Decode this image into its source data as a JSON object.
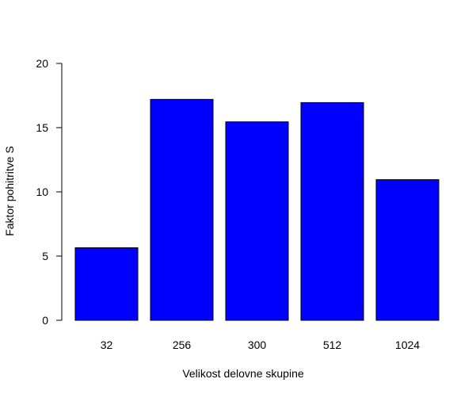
{
  "chart_data": {
    "type": "bar",
    "title": "",
    "xlabel": "Velikost delovne skupine",
    "ylabel": "Faktor pohitritve S",
    "categories": [
      "32",
      "256",
      "300",
      "512",
      "1024"
    ],
    "values": [
      5.65,
      17.2,
      15.45,
      16.95,
      10.95
    ],
    "ylim": [
      0,
      20
    ],
    "yticks": [
      0,
      5,
      10,
      15,
      20
    ],
    "grid": false,
    "legend": "none",
    "bar_color": "#0000FF",
    "border_color": "#000000"
  }
}
